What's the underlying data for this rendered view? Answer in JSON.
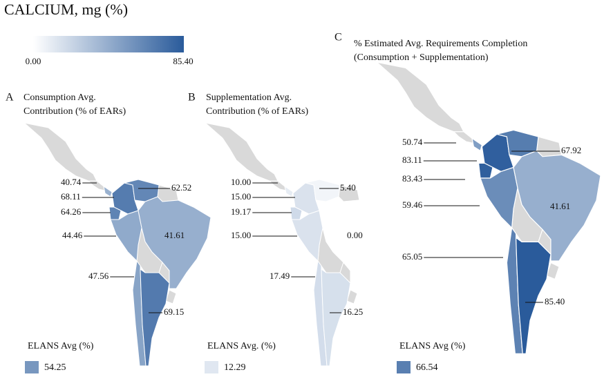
{
  "title": "CALCIUM, mg (%)",
  "color_scale": {
    "min": "0.00",
    "max": "85.40",
    "low_color": "#ffffff",
    "high_color": "#2a5b9b",
    "no_data_color": "#d9d9d9"
  },
  "panels": [
    {
      "letter": "A",
      "title": [
        "Consumption Avg.",
        "Contribution (% of EARs)"
      ],
      "values": [
        "40.74",
        "68.11",
        "62.52",
        "64.26",
        "44.46",
        "41.61",
        "47.56",
        "69.15"
      ],
      "elans_label": "ELANS Avg (%)",
      "elans_value": "54.25"
    },
    {
      "letter": "B",
      "title": [
        "Supplementation Avg.",
        "Contribution (% of EARs)"
      ],
      "values": [
        "10.00",
        "15.00",
        "5.40",
        "19.17",
        "15.00",
        "0.00",
        "17.49",
        "16.25"
      ],
      "elans_label": "ELANS Avg. (%)",
      "elans_value": "12.29"
    },
    {
      "letter": "C",
      "title": [
        "% Estimated Avg. Requirements Completion",
        "(Consumption + Supplementation)"
      ],
      "values": [
        "50.74",
        "83.11",
        "67.92",
        "83.43",
        "59.46",
        "41.61",
        "65.05",
        "85.40"
      ],
      "elans_label": "ELANS Avg (%)",
      "elans_value": "66.54"
    }
  ]
}
